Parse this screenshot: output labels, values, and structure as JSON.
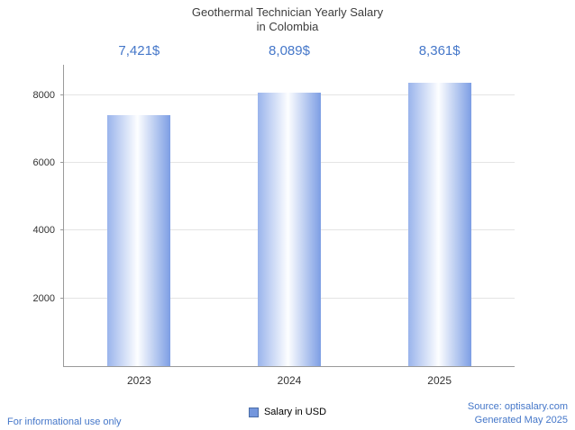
{
  "chart_data": {
    "type": "bar",
    "title_line1": "Geothermal Technician Yearly Salary",
    "title_line2": "in Colombia",
    "categories": [
      "2023",
      "2024",
      "2025"
    ],
    "values": [
      7421,
      8089,
      8361
    ],
    "value_labels": [
      "7,421$",
      "8,089$",
      "8,361$"
    ],
    "yticks": [
      2000,
      4000,
      6000,
      8000
    ],
    "ylim": [
      0,
      8900
    ],
    "xlabel": "",
    "ylabel": "",
    "grid": "horizontal",
    "legend": "Salary in USD",
    "legend_position": "bottom-center"
  },
  "footer": {
    "disclaimer": "For informational use only",
    "source": "Source: optisalary.com",
    "generated": "Generated May 2025"
  },
  "colors": {
    "accent_blue": "#4577c9",
    "title_gray": "#3d3d3d",
    "bar_edge_left": "#9ab4ec",
    "bar_center": "#fdfeff",
    "bar_edge_right": "#7d9ee4",
    "legend_swatch": "#7396dd",
    "legend_swatch_border": "#4a6da8",
    "axis_gray": "#9a9a9a",
    "gridline_gray": "#e4e4e4"
  }
}
